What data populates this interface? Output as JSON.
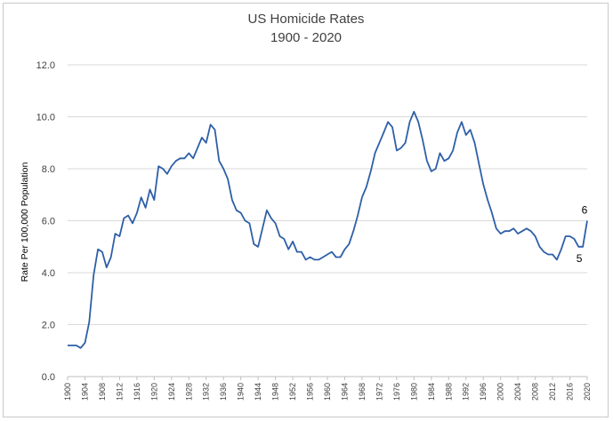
{
  "chart_data": {
    "type": "line",
    "title": "US Homicide Rates",
    "subtitle": "1900 - 2020",
    "xlabel": "",
    "ylabel": "Rate Per 100,000 Population",
    "ylim": [
      0,
      12
    ],
    "xlim": [
      1900,
      2020
    ],
    "y_ticks": [
      "0.0",
      "2.0",
      "4.0",
      "6.0",
      "8.0",
      "10.0",
      "12.0"
    ],
    "x_ticks": [
      "1900",
      "1904",
      "1908",
      "1912",
      "1916",
      "1920",
      "1924",
      "1928",
      "1932",
      "1936",
      "1940",
      "1944",
      "1948",
      "1952",
      "1956",
      "1960",
      "1964",
      "1968",
      "1972",
      "1976",
      "1980",
      "1984",
      "1988",
      "1992",
      "1996",
      "2000",
      "2004",
      "2008",
      "2012",
      "2016",
      "2020"
    ],
    "grid": true,
    "legend": "none",
    "line_color": "#2e5fa8",
    "series": [
      {
        "x": [
          1900,
          1901,
          1902,
          1903,
          1904,
          1905,
          1906,
          1907,
          1908,
          1909,
          1910,
          1911,
          1912,
          1913,
          1914,
          1915,
          1916,
          1917,
          1918,
          1919,
          1920,
          1921,
          1922,
          1923,
          1924,
          1925,
          1926,
          1927,
          1928,
          1929,
          1930,
          1931,
          1932,
          1933,
          1934,
          1935,
          1936,
          1937,
          1938,
          1939,
          1940,
          1941,
          1942,
          1943,
          1944,
          1945,
          1946,
          1947,
          1948,
          1949,
          1950,
          1951,
          1952,
          1953,
          1954,
          1955,
          1956,
          1957,
          1958,
          1959,
          1960,
          1961,
          1962,
          1963,
          1964,
          1965,
          1966,
          1967,
          1968,
          1969,
          1970,
          1971,
          1972,
          1973,
          1974,
          1975,
          1976,
          1977,
          1978,
          1979,
          1980,
          1981,
          1982,
          1983,
          1984,
          1985,
          1986,
          1987,
          1988,
          1989,
          1990,
          1991,
          1992,
          1993,
          1994,
          1995,
          1996,
          1997,
          1998,
          1999,
          2000,
          2001,
          2002,
          2003,
          2004,
          2005,
          2006,
          2007,
          2008,
          2009,
          2010,
          2011,
          2012,
          2013,
          2014,
          2015,
          2016,
          2017,
          2018,
          2019,
          2020
        ],
        "values": [
          1.2,
          1.2,
          1.2,
          1.1,
          1.3,
          2.1,
          3.9,
          4.9,
          4.8,
          4.2,
          4.6,
          5.5,
          5.4,
          6.1,
          6.2,
          5.9,
          6.3,
          6.9,
          6.5,
          7.2,
          6.8,
          8.1,
          8.0,
          7.8,
          8.1,
          8.3,
          8.4,
          8.4,
          8.6,
          8.4,
          8.8,
          9.2,
          9.0,
          9.7,
          9.5,
          8.3,
          8.0,
          7.6,
          6.8,
          6.4,
          6.3,
          6.0,
          5.9,
          5.1,
          5.0,
          5.7,
          6.4,
          6.1,
          5.9,
          5.4,
          5.3,
          4.9,
          5.2,
          4.8,
          4.8,
          4.5,
          4.6,
          4.5,
          4.5,
          4.6,
          4.7,
          4.8,
          4.6,
          4.6,
          4.9,
          5.1,
          5.6,
          6.2,
          6.9,
          7.3,
          7.9,
          8.6,
          9.0,
          9.4,
          9.8,
          9.6,
          8.7,
          8.8,
          9.0,
          9.8,
          10.2,
          9.8,
          9.1,
          8.3,
          7.9,
          8.0,
          8.6,
          8.3,
          8.4,
          8.7,
          9.4,
          9.8,
          9.3,
          9.5,
          9.0,
          8.2,
          7.4,
          6.8,
          6.3,
          5.7,
          5.5,
          5.6,
          5.6,
          5.7,
          5.5,
          5.6,
          5.7,
          5.6,
          5.4,
          5.0,
          4.8,
          4.7,
          4.7,
          4.5,
          4.9,
          5.4,
          5.4,
          5.3,
          5.0,
          5.0,
          6.0
        ]
      }
    ],
    "annotations": [
      {
        "text": "6",
        "x": 2020,
        "y": 6.0
      },
      {
        "text": "5",
        "x": 2019,
        "y": 5.0
      }
    ]
  }
}
